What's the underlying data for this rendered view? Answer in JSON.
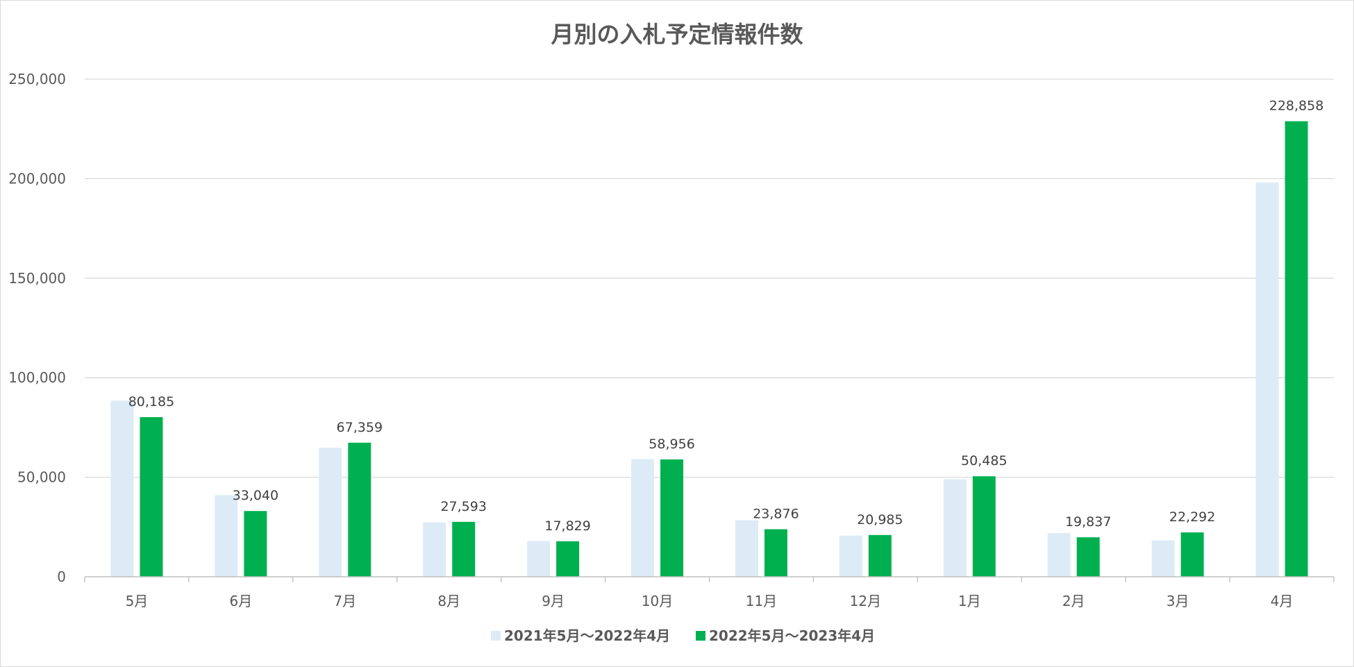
{
  "chart_data": {
    "type": "bar",
    "title": "月別の入札予定情報件数",
    "xlabel": "",
    "ylabel": "",
    "categories": [
      "5月",
      "6月",
      "7月",
      "8月",
      "9月",
      "10月",
      "11月",
      "12月",
      "1月",
      "2月",
      "3月",
      "4月"
    ],
    "yticks": [
      "0",
      "50,000",
      "100,000",
      "150,000",
      "200,000",
      "250,000"
    ],
    "ylim": [
      0,
      250000
    ],
    "grid": true,
    "legend_position": "bottom",
    "series": [
      {
        "name": "2021年5月～2022年4月",
        "color": "#ddebf7",
        "values": [
          88500,
          41000,
          64800,
          27300,
          18000,
          59100,
          28400,
          20700,
          49000,
          22000,
          18300,
          198000
        ],
        "show_labels": false
      },
      {
        "name": "2022年5月～2023年4月",
        "color": "#00b050",
        "values": [
          80185,
          33040,
          67359,
          27593,
          17829,
          58956,
          23876,
          20985,
          50485,
          19837,
          22292,
          228858
        ],
        "labels": [
          "80,185",
          "33,040",
          "67,359",
          "27,593",
          "17,829",
          "58,956",
          "23,876",
          "20,985",
          "50,485",
          "19,837",
          "22,292",
          "228,858"
        ],
        "show_labels": true
      }
    ]
  }
}
